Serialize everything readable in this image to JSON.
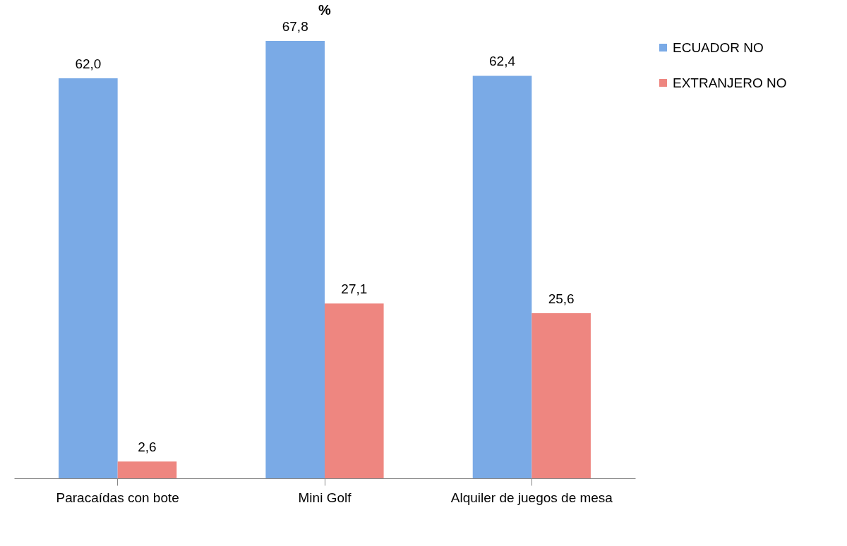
{
  "chart_data": {
    "type": "bar",
    "title": "%",
    "categories": [
      "Paracaídas con bote",
      "Mini Golf",
      "Alquiler de juegos de mesa"
    ],
    "series": [
      {
        "name": "ECUADOR NO",
        "color": "#7aaae6",
        "values": [
          62.0,
          67.8,
          62.4
        ],
        "value_labels": [
          "62,0",
          "67,8",
          "62,4"
        ]
      },
      {
        "name": "EXTRANJERO NO",
        "color": "#ee8680",
        "values": [
          2.6,
          27.1,
          25.6
        ],
        "value_labels": [
          "2,6",
          "27,1",
          "25,6"
        ]
      }
    ],
    "legend": "right"
  }
}
